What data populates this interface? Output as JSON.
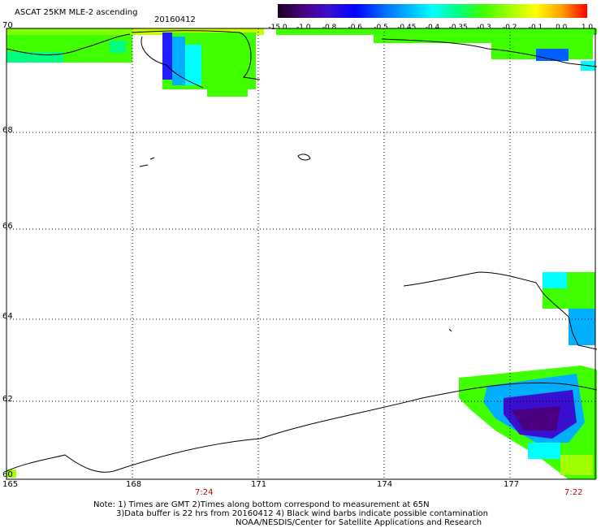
{
  "header": {
    "title": "ASCAT 25KM MLE-2 ascending",
    "date": "20160412"
  },
  "colorbar": {
    "labels": [
      "-15.0",
      "-1.0",
      "-0.8",
      "-0.6",
      "-0.5",
      "-0.45",
      "-0.4",
      "-0.35",
      "-0.3",
      "-0.2",
      "-0.1",
      "0.0",
      "1.0"
    ],
    "gradient": [
      "#1a0020",
      "#4b0082",
      "#3a10d0",
      "#0000ff",
      "#0060ff",
      "#00b0ff",
      "#00ffff",
      "#00ff80",
      "#40ff00",
      "#a0ff00",
      "#ffff00",
      "#ffa000",
      "#ff0000"
    ]
  },
  "map": {
    "lat_labels": [
      "70",
      "68",
      "66",
      "64",
      "62",
      "60"
    ],
    "lon_labels": [
      "165",
      "168",
      "171",
      "174",
      "177"
    ],
    "time_labels": [
      "7:24",
      "7:22"
    ],
    "time_color": "#c00000",
    "background": "#ffffff",
    "grid_color": "#000000",
    "coast_color": "#000000"
  },
  "footer": {
    "line1": "Note: 1) Times are GMT 2)Times along bottom correspond to measurement at 65N",
    "line2": "3)Data buffer is 22 hrs from 20160412 4) Black wind barbs indicate possible contamination",
    "line3": "NOAA/NESDIS/Center for Satellite Applications and Research"
  }
}
